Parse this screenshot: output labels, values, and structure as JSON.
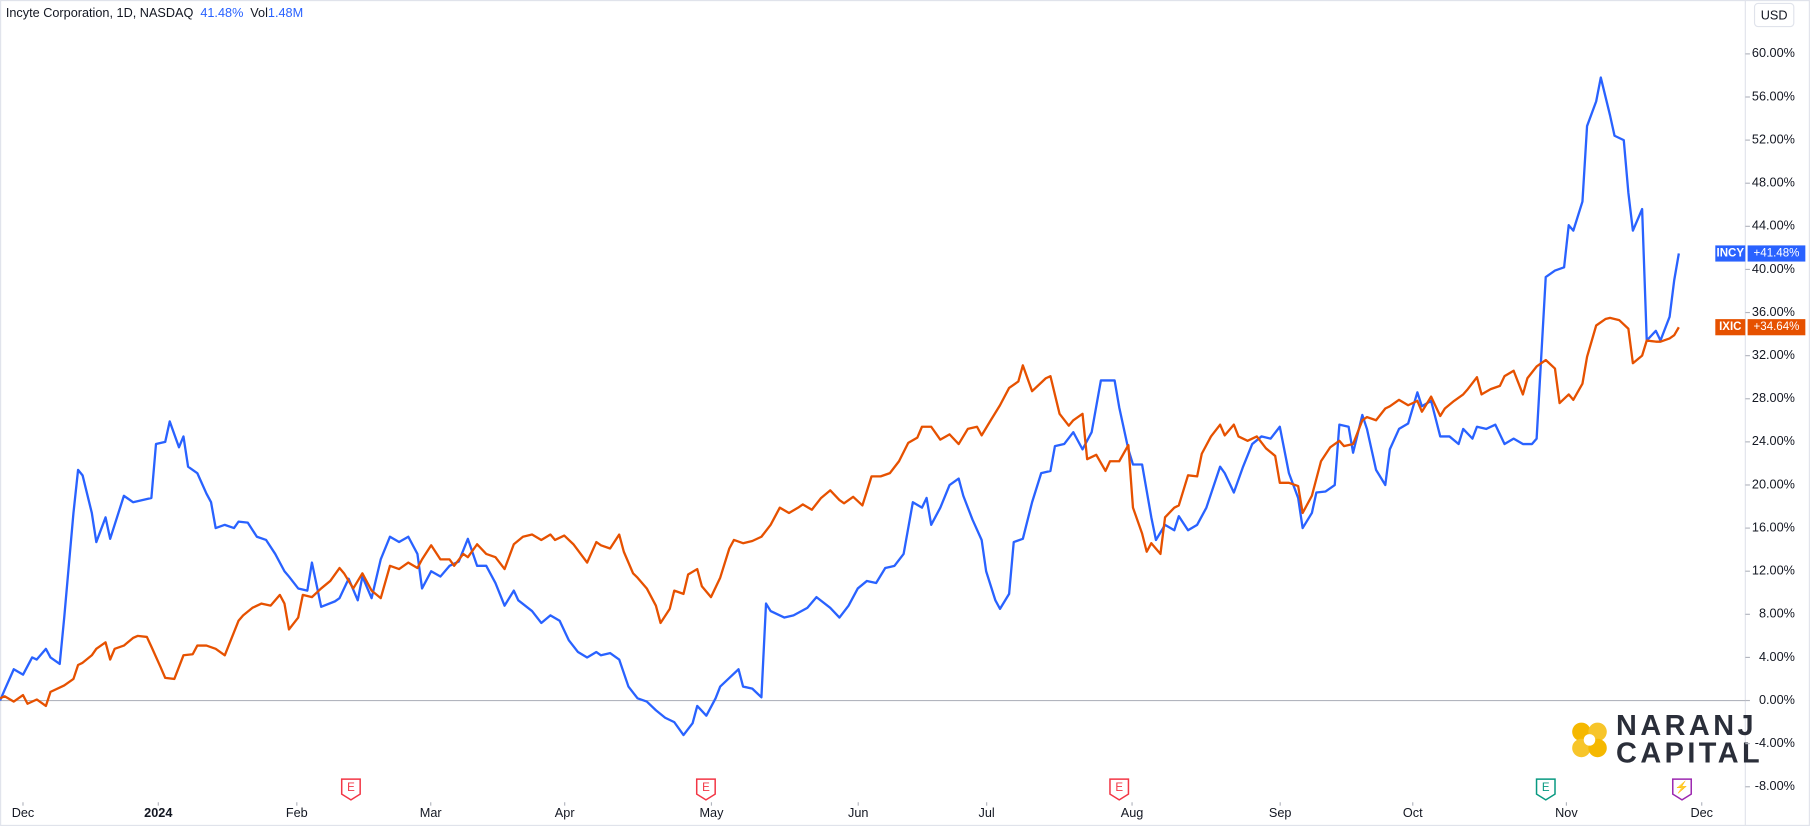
{
  "chart_data": {
    "type": "line",
    "title": "Incyte Corporation, 1D, NASDAQ",
    "header_change": "41.48%",
    "volume_label": "Vol",
    "volume": "1.48M",
    "currency": "USD",
    "watermark": [
      "NARANJ",
      "CAPITAL"
    ],
    "xlim": [
      -5,
      375
    ],
    "ylim": [
      -9.5,
      65
    ],
    "xticks": [
      {
        "value": 0,
        "label": "Dec"
      },
      {
        "value": 29.5,
        "label": "2024"
      },
      {
        "value": 59.7,
        "label": "Feb"
      },
      {
        "value": 88.9,
        "label": "Mar"
      },
      {
        "value": 118.1,
        "label": "Apr"
      },
      {
        "value": 150.1,
        "label": "May"
      },
      {
        "value": 182.1,
        "label": "Jun"
      },
      {
        "value": 210.1,
        "label": "Jul"
      },
      {
        "value": 241.8,
        "label": "Aug"
      },
      {
        "value": 274.1,
        "label": "Sep"
      },
      {
        "value": 303,
        "label": "Oct"
      },
      {
        "value": 336.5,
        "label": "Nov"
      },
      {
        "value": 366,
        "label": "Dec"
      }
    ],
    "yticks": [
      {
        "value": -8,
        "label": "-8.00%"
      },
      {
        "value": -4,
        "label": "-4.00%"
      },
      {
        "value": 0,
        "label": "0.00%"
      },
      {
        "value": 4,
        "label": "4.00%"
      },
      {
        "value": 8,
        "label": "8.00%"
      },
      {
        "value": 12,
        "label": "12.00%"
      },
      {
        "value": 16,
        "label": "16.00%"
      },
      {
        "value": 20,
        "label": "20.00%"
      },
      {
        "value": 24,
        "label": "24.00%"
      },
      {
        "value": 28,
        "label": "28.00%"
      },
      {
        "value": 32,
        "label": "32.00%"
      },
      {
        "value": 36,
        "label": "36.00%"
      },
      {
        "value": 40,
        "label": "40.00%"
      },
      {
        "value": 44,
        "label": "44.00%"
      },
      {
        "value": 48,
        "label": "48.00%"
      },
      {
        "value": 52,
        "label": "52.00%"
      },
      {
        "value": 56,
        "label": "56.00%"
      },
      {
        "value": 60,
        "label": "60.00%"
      }
    ],
    "events": [
      {
        "x": 71.5,
        "label": "E",
        "color": "#f23645"
      },
      {
        "x": 148.9,
        "label": "E",
        "color": "#f23645"
      },
      {
        "x": 239,
        "label": "E",
        "color": "#f23645"
      },
      {
        "x": 332,
        "label": "E",
        "color": "#089981"
      },
      {
        "x": 361.7,
        "label": "⚡",
        "color": "#9c27b0"
      }
    ],
    "series": [
      {
        "name": "INCY",
        "color": "#2962ff",
        "end_label": "+41.48%",
        "x": [
          -5,
          -4,
          -2,
          0,
          2,
          3,
          5,
          6,
          8,
          9,
          11,
          12,
          13,
          15,
          16,
          18,
          19,
          22,
          24,
          28,
          29,
          31,
          32,
          34,
          35,
          36,
          38,
          40,
          41,
          42,
          44,
          46,
          47,
          49,
          51,
          53,
          55,
          57,
          58,
          60,
          62,
          63,
          65,
          68,
          69,
          71,
          73,
          74,
          76,
          78,
          80,
          82,
          84,
          86,
          87,
          89,
          91,
          93,
          95,
          97,
          99,
          101,
          103,
          105,
          107,
          108,
          111,
          113,
          115,
          117,
          119,
          121,
          123,
          125,
          126,
          128,
          130,
          132,
          134,
          136,
          138,
          140,
          142,
          144,
          146,
          147,
          149,
          151,
          152,
          154,
          156,
          157,
          159,
          161,
          162,
          163,
          166,
          168,
          171,
          173,
          176,
          178,
          180,
          182,
          184,
          186,
          188,
          190,
          192,
          194,
          196,
          197,
          198,
          200,
          202,
          204,
          205,
          207,
          209,
          210,
          212,
          213,
          215,
          216,
          218,
          220,
          222,
          224,
          225,
          227,
          229,
          231,
          233,
          235,
          238,
          239,
          241,
          242,
          244,
          246,
          247,
          249,
          251,
          252,
          254,
          256,
          258,
          261,
          262,
          264,
          266,
          268,
          270,
          272,
          274,
          276,
          278,
          279,
          281,
          282,
          284,
          286,
          287,
          289,
          290,
          292,
          293,
          295,
          297,
          298,
          300,
          302,
          304,
          305,
          307,
          309,
          311,
          313,
          314,
          316,
          317,
          319,
          321,
          323,
          325,
          327,
          329,
          330,
          332,
          334,
          336,
          337,
          338,
          340,
          341,
          343,
          344,
          346,
          347,
          349,
          350,
          351,
          353,
          354,
          356,
          357,
          359,
          360,
          361
        ],
        "values": [
          0,
          1.0,
          2.9,
          2.4,
          4.0,
          3.8,
          4.8,
          4.0,
          3.4,
          7.7,
          17.4,
          21.4,
          20.9,
          17.4,
          14.7,
          17.0,
          15.0,
          19.0,
          18.4,
          18.8,
          23.8,
          24.0,
          25.9,
          23.5,
          24.5,
          21.7,
          21.1,
          19.2,
          18.4,
          16.0,
          16.3,
          16.0,
          16.6,
          16.5,
          15.2,
          14.9,
          13.6,
          12.0,
          11.5,
          10.4,
          10.2,
          12.8,
          8.7,
          9.2,
          9.5,
          11.3,
          9.3,
          11.5,
          9.5,
          13.1,
          15.2,
          14.7,
          15.2,
          13.6,
          10.4,
          12.0,
          11.5,
          12.5,
          12.9,
          15.0,
          12.5,
          12.5,
          10.9,
          8.8,
          10.2,
          9.3,
          8.3,
          7.2,
          7.9,
          7.4,
          5.6,
          4.5,
          4.0,
          4.5,
          4.2,
          4.4,
          3.8,
          1.3,
          0.2,
          -0.1,
          -0.9,
          -1.6,
          -2.0,
          -3.2,
          -2.1,
          -0.5,
          -1.4,
          0.2,
          1.3,
          2.1,
          2.9,
          1.3,
          1.1,
          0.3,
          9.0,
          8.3,
          7.7,
          7.9,
          8.6,
          9.6,
          8.6,
          7.7,
          8.8,
          10.4,
          11.1,
          10.9,
          12.3,
          12.5,
          13.6,
          18.4,
          17.9,
          18.8,
          16.3,
          17.9,
          20.0,
          20.6,
          19.0,
          16.8,
          14.9,
          12.0,
          9.3,
          8.5,
          9.9,
          14.7,
          15.0,
          18.4,
          21.1,
          21.3,
          23.6,
          23.8,
          24.9,
          23.3,
          24.9,
          29.7,
          29.7,
          27.2,
          23.3,
          21.9,
          21.9,
          17.0,
          14.9,
          16.3,
          15.8,
          17.1,
          15.8,
          16.3,
          17.9,
          21.7,
          21.1,
          19.3,
          21.7,
          23.8,
          24.5,
          24.3,
          25.4,
          21.1,
          18.8,
          16.0,
          17.4,
          19.3,
          19.4,
          20.0,
          25.6,
          25.4,
          23.0,
          26.5,
          25.2,
          21.4,
          20.0,
          23.3,
          25.2,
          25.7,
          28.6,
          27.3,
          27.8,
          24.5,
          24.5,
          23.8,
          25.2,
          24.3,
          25.4,
          25.2,
          25.6,
          23.8,
          24.3,
          23.8,
          23.8,
          24.3,
          39.3,
          39.9,
          40.2,
          44.1,
          43.6,
          46.3,
          53.3,
          55.6,
          57.8,
          54.3,
          52.4,
          52.0,
          47.1,
          43.6,
          45.6,
          33.4,
          34.3,
          33.4,
          35.6,
          39.0,
          41.48
        ]
      },
      {
        "name": "IXIC",
        "color": "#e65100",
        "end_label": "+34.64%",
        "x": [
          -5,
          -4,
          -2,
          0,
          1,
          3,
          5,
          6,
          8,
          9,
          11,
          12,
          13,
          15,
          16,
          18,
          19,
          20,
          22,
          24,
          25,
          27,
          28,
          30,
          31,
          33,
          35,
          37,
          38,
          40,
          42,
          44,
          47,
          48,
          50,
          52,
          54,
          56,
          57,
          58,
          60,
          61,
          63,
          65,
          67,
          69,
          70,
          72,
          74,
          76,
          78,
          80,
          82,
          84,
          86,
          87,
          89,
          91,
          93,
          94,
          96,
          97,
          99,
          101,
          103,
          105,
          107,
          109,
          111,
          113,
          115,
          116,
          118,
          120,
          123,
          125,
          126,
          128,
          130,
          131,
          133,
          134,
          136,
          138,
          139,
          141,
          142,
          144,
          145,
          147,
          148,
          150,
          152,
          154,
          155,
          157,
          159,
          161,
          163,
          165,
          167,
          169,
          170,
          172,
          174,
          176,
          178,
          179,
          181,
          183,
          185,
          187,
          189,
          191,
          193,
          195,
          196,
          198,
          200,
          202,
          204,
          206,
          208,
          209,
          211,
          213,
          215,
          217,
          218,
          220,
          222,
          223,
          224,
          226,
          228,
          229,
          231,
          232,
          234,
          236,
          237,
          239,
          241,
          242,
          244,
          245,
          246,
          248,
          249,
          251,
          252,
          254,
          256,
          257,
          259,
          261,
          262,
          264,
          265,
          267,
          269,
          271,
          273,
          274,
          276,
          278,
          279,
          281,
          283,
          285,
          287,
          288,
          290,
          292,
          293,
          295,
          297,
          298,
          300,
          302,
          304,
          305,
          307,
          309,
          310,
          312,
          314,
          315,
          317,
          318,
          320,
          322,
          323,
          325,
          327,
          328,
          330,
          332,
          334,
          335,
          337,
          338,
          340,
          341,
          343,
          345,
          346,
          348,
          350,
          351,
          353,
          354,
          356,
          357,
          359,
          360,
          361
        ],
        "values": [
          0.2,
          0.4,
          -0.1,
          0.5,
          -0.3,
          0.1,
          -0.5,
          0.8,
          1.2,
          1.4,
          2.0,
          3.3,
          3.5,
          4.2,
          4.8,
          5.4,
          3.8,
          4.8,
          5.1,
          5.8,
          6.0,
          5.9,
          5.0,
          3.1,
          2.1,
          2.0,
          4.2,
          4.3,
          5.1,
          5.1,
          4.8,
          4.2,
          7.4,
          7.9,
          8.6,
          9.0,
          8.8,
          9.8,
          9.0,
          6.6,
          7.7,
          9.8,
          9.6,
          10.4,
          11.1,
          12.3,
          11.8,
          10.4,
          11.8,
          10.2,
          9.5,
          12.5,
          12.2,
          12.8,
          12.3,
          13.1,
          14.4,
          13.1,
          13.1,
          12.5,
          13.6,
          13.3,
          14.5,
          13.6,
          13.3,
          12.2,
          14.5,
          15.2,
          15.4,
          14.9,
          15.4,
          14.9,
          15.3,
          14.5,
          12.8,
          14.7,
          14.4,
          14.1,
          15.4,
          13.8,
          11.8,
          11.4,
          10.4,
          8.8,
          7.2,
          8.5,
          10.2,
          9.9,
          11.7,
          12.2,
          10.6,
          9.6,
          11.4,
          14.1,
          14.9,
          14.6,
          14.8,
          15.2,
          16.3,
          17.9,
          17.4,
          17.9,
          18.2,
          17.7,
          18.8,
          19.5,
          18.6,
          18.3,
          18.9,
          18.1,
          20.8,
          20.8,
          21.1,
          22.2,
          23.9,
          24.4,
          25.4,
          25.4,
          24.2,
          24.7,
          23.8,
          25.2,
          25.4,
          24.6,
          26.0,
          27.4,
          29.0,
          29.6,
          31.1,
          28.7,
          29.5,
          29.9,
          30.1,
          26.6,
          25.5,
          26.0,
          26.6,
          22.4,
          22.8,
          21.3,
          22.2,
          22.2,
          23.7,
          17.9,
          15.5,
          13.8,
          14.6,
          13.6,
          17.0,
          17.9,
          18.1,
          20.9,
          20.8,
          22.9,
          24.5,
          25.6,
          24.6,
          25.6,
          24.5,
          24.1,
          24.5,
          23.4,
          22.7,
          20.2,
          20.2,
          19.9,
          17.4,
          19.0,
          22.2,
          23.5,
          24.1,
          23.6,
          23.8,
          26.0,
          26.3,
          26.0,
          27.1,
          27.3,
          27.9,
          27.4,
          27.8,
          26.8,
          28.2,
          26.4,
          27.1,
          27.8,
          28.4,
          28.9,
          30.0,
          28.4,
          28.9,
          29.2,
          30.1,
          30.6,
          28.4,
          29.9,
          31.0,
          31.6,
          30.8,
          27.6,
          28.4,
          27.9,
          29.4,
          31.9,
          34.8,
          35.4,
          35.5,
          35.3,
          34.5,
          31.3,
          32.0,
          33.4,
          33.3,
          33.3,
          33.6,
          33.9,
          34.64
        ]
      }
    ]
  }
}
